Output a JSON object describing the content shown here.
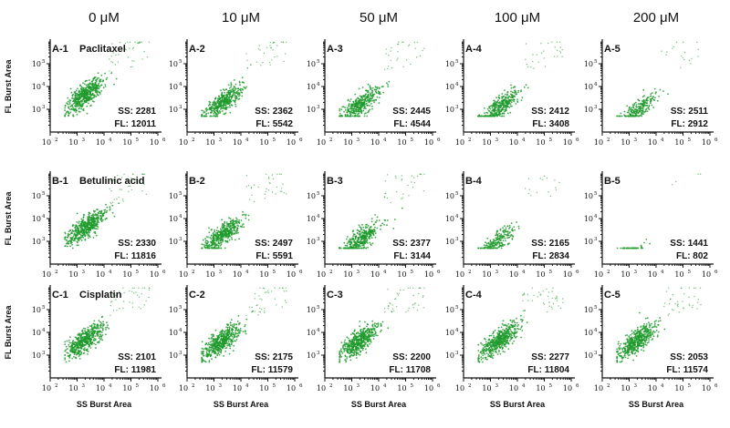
{
  "figure": {
    "columns": [
      "0 μM",
      "10 μM",
      "50 μM",
      "100 μM",
      "200 μM"
    ],
    "row_drugs": [
      "Paclitaxel",
      "Betulinic acid",
      "Cisplatin"
    ],
    "y_axis_label": "FL Burst Area",
    "x_axis_label": "SS Burst Area",
    "x_tick_exponents": [
      "2",
      "3",
      "4",
      "5",
      "6"
    ],
    "y_tick_exponents": [
      "3",
      "4",
      "5"
    ],
    "tick_base": "10",
    "point_color": "#1f9a2b"
  },
  "chart_data": [
    {
      "type": "scatter",
      "panel": "A-1",
      "drug": "Paclitaxel",
      "concentration": "0 μM",
      "ss_label": "SS: 2281",
      "fl_label": "FL: 12011",
      "ss": 2281,
      "fl": 12011,
      "density": 1.0,
      "spread": 1.0,
      "xscale": "log",
      "yscale": "log",
      "xlim": [
        100,
        1000000
      ],
      "ylim": [
        100,
        1000000
      ]
    },
    {
      "type": "scatter",
      "panel": "A-2",
      "drug": "Paclitaxel",
      "concentration": "10 μM",
      "ss_label": "SS: 2362",
      "fl_label": "FL: 5542",
      "ss": 2362,
      "fl": 5542,
      "density": 0.85,
      "spread": 1.0,
      "xscale": "log",
      "yscale": "log",
      "xlim": [
        100,
        1000000
      ],
      "ylim": [
        100,
        1000000
      ]
    },
    {
      "type": "scatter",
      "panel": "A-3",
      "drug": "Paclitaxel",
      "concentration": "50 μM",
      "ss_label": "SS: 2445",
      "fl_label": "FL: 4544",
      "ss": 2445,
      "fl": 4544,
      "density": 0.75,
      "spread": 1.0,
      "xscale": "log",
      "yscale": "log",
      "xlim": [
        100,
        1000000
      ],
      "ylim": [
        100,
        1000000
      ]
    },
    {
      "type": "scatter",
      "panel": "A-4",
      "drug": "Paclitaxel",
      "concentration": "100 μM",
      "ss_label": "SS: 2412",
      "fl_label": "FL: 3408",
      "ss": 2412,
      "fl": 3408,
      "density": 0.7,
      "spread": 1.0,
      "xscale": "log",
      "yscale": "log",
      "xlim": [
        100,
        1000000
      ],
      "ylim": [
        100,
        1000000
      ]
    },
    {
      "type": "scatter",
      "panel": "A-5",
      "drug": "Paclitaxel",
      "concentration": "200 μM",
      "ss_label": "SS: 2511",
      "fl_label": "FL: 2912",
      "ss": 2511,
      "fl": 2912,
      "density": 0.45,
      "spread": 0.9,
      "xscale": "log",
      "yscale": "log",
      "xlim": [
        100,
        1000000
      ],
      "ylim": [
        100,
        1000000
      ]
    },
    {
      "type": "scatter",
      "panel": "B-1",
      "drug": "Betulinic acid",
      "concentration": "0 μM",
      "ss_label": "SS: 2330",
      "fl_label": "FL: 11816",
      "ss": 2330,
      "fl": 11816,
      "density": 1.0,
      "spread": 1.0,
      "xscale": "log",
      "yscale": "log",
      "xlim": [
        100,
        1000000
      ],
      "ylim": [
        100,
        1000000
      ]
    },
    {
      "type": "scatter",
      "panel": "B-2",
      "drug": "Betulinic acid",
      "concentration": "10 μM",
      "ss_label": "SS: 2497",
      "fl_label": "FL: 5591",
      "ss": 2497,
      "fl": 5591,
      "density": 0.85,
      "spread": 1.0,
      "xscale": "log",
      "yscale": "log",
      "xlim": [
        100,
        1000000
      ],
      "ylim": [
        100,
        1000000
      ]
    },
    {
      "type": "scatter",
      "panel": "B-3",
      "drug": "Betulinic acid",
      "concentration": "50 μM",
      "ss_label": "SS: 2377",
      "fl_label": "FL: 3144",
      "ss": 2377,
      "fl": 3144,
      "density": 0.75,
      "spread": 1.0,
      "xscale": "log",
      "yscale": "log",
      "xlim": [
        100,
        1000000
      ],
      "ylim": [
        100,
        1000000
      ]
    },
    {
      "type": "scatter",
      "panel": "B-4",
      "drug": "Betulinic acid",
      "concentration": "100 μM",
      "ss_label": "SS: 2165",
      "fl_label": "FL: 2834",
      "ss": 2165,
      "fl": 2834,
      "density": 0.4,
      "spread": 0.85,
      "xscale": "log",
      "yscale": "log",
      "xlim": [
        100,
        1000000
      ],
      "ylim": [
        100,
        1000000
      ]
    },
    {
      "type": "scatter",
      "panel": "B-5",
      "drug": "Betulinic acid",
      "concentration": "200 μM",
      "ss_label": "SS: 1441",
      "fl_label": "FL: 802",
      "ss": 1441,
      "fl": 802,
      "density": 0.1,
      "spread": 0.7,
      "xscale": "log",
      "yscale": "log",
      "xlim": [
        100,
        1000000
      ],
      "ylim": [
        100,
        1000000
      ]
    },
    {
      "type": "scatter",
      "panel": "C-1",
      "drug": "Cisplatin",
      "concentration": "0 μM",
      "ss_label": "SS: 2101",
      "fl_label": "FL: 11981",
      "ss": 2101,
      "fl": 11981,
      "density": 1.0,
      "spread": 1.0,
      "xscale": "log",
      "yscale": "log",
      "xlim": [
        100,
        1000000
      ],
      "ylim": [
        100,
        1000000
      ]
    },
    {
      "type": "scatter",
      "panel": "C-2",
      "drug": "Cisplatin",
      "concentration": "10 μM",
      "ss_label": "SS: 2175",
      "fl_label": "FL: 11579",
      "ss": 2175,
      "fl": 11579,
      "density": 1.0,
      "spread": 1.0,
      "xscale": "log",
      "yscale": "log",
      "xlim": [
        100,
        1000000
      ],
      "ylim": [
        100,
        1000000
      ]
    },
    {
      "type": "scatter",
      "panel": "C-3",
      "drug": "Cisplatin",
      "concentration": "50 μM",
      "ss_label": "SS: 2200",
      "fl_label": "FL: 11708",
      "ss": 2200,
      "fl": 11708,
      "density": 1.0,
      "spread": 1.0,
      "xscale": "log",
      "yscale": "log",
      "xlim": [
        100,
        1000000
      ],
      "ylim": [
        100,
        1000000
      ]
    },
    {
      "type": "scatter",
      "panel": "C-4",
      "drug": "Cisplatin",
      "concentration": "100 μM",
      "ss_label": "SS: 2277",
      "fl_label": "FL: 11804",
      "ss": 2277,
      "fl": 11804,
      "density": 1.0,
      "spread": 1.0,
      "xscale": "log",
      "yscale": "log",
      "xlim": [
        100,
        1000000
      ],
      "ylim": [
        100,
        1000000
      ]
    },
    {
      "type": "scatter",
      "panel": "C-5",
      "drug": "Cisplatin",
      "concentration": "200 μM",
      "ss_label": "SS: 2053",
      "fl_label": "FL: 11574",
      "ss": 2053,
      "fl": 11574,
      "density": 0.95,
      "spread": 1.0,
      "xscale": "log",
      "yscale": "log",
      "xlim": [
        100,
        1000000
      ],
      "ylim": [
        100,
        1000000
      ]
    }
  ]
}
